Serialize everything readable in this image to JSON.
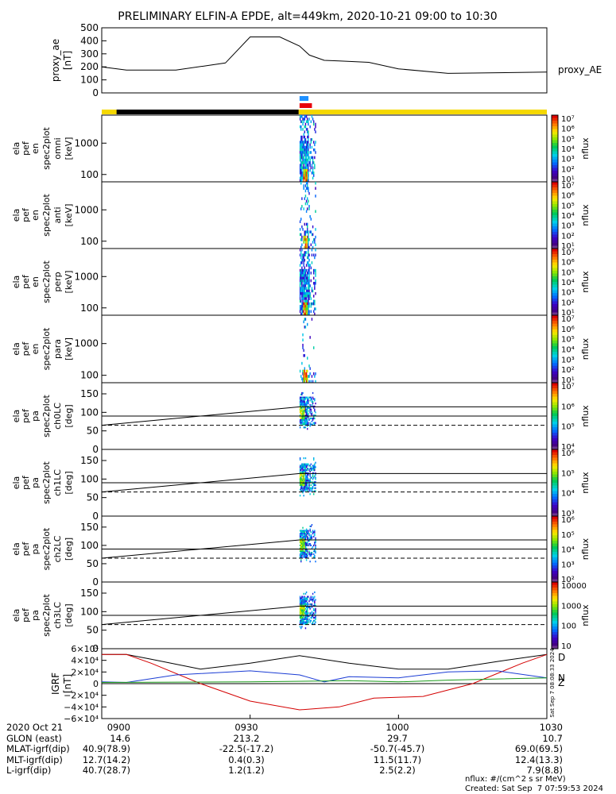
{
  "title": "PRELIMINARY ELFIN-A EPDE, alt=449km, 2020-10-21 09:00 to 10:30",
  "panels": {
    "ae": {
      "ylabel": [
        "proxy_ae",
        "[nT]"
      ],
      "yticks": [
        "500",
        "400",
        "300",
        "200",
        "100",
        "0"
      ],
      "legend": "proxy_AE"
    },
    "spec": [
      {
        "ylabel": [
          "ela",
          "pef",
          "en",
          "spec2plot",
          "omni",
          "[keV]"
        ],
        "yticks": [
          "1000",
          "100"
        ]
      },
      {
        "ylabel": [
          "ela",
          "pef",
          "en",
          "spec2plot",
          "anti",
          "[keV]"
        ],
        "yticks": [
          "1000",
          "100"
        ]
      },
      {
        "ylabel": [
          "ela",
          "pef",
          "en",
          "spec2plot",
          "perp",
          "[keV]"
        ],
        "yticks": [
          "1000",
          "100"
        ]
      },
      {
        "ylabel": [
          "ela",
          "pef",
          "en",
          "spec2plot",
          "para",
          "[keV]"
        ],
        "yticks": [
          "1000",
          "100"
        ]
      }
    ],
    "pa": [
      {
        "ylabel": [
          "ela",
          "pef",
          "pa",
          "spec2plot",
          "ch0LC",
          "[deg]"
        ],
        "yticks": [
          "150",
          "100",
          "50",
          "0"
        ]
      },
      {
        "ylabel": [
          "ela",
          "pef",
          "pa",
          "spec2plot",
          "ch1LC",
          "[deg]"
        ],
        "yticks": [
          "150",
          "100",
          "50",
          "0"
        ]
      },
      {
        "ylabel": [
          "ela",
          "pef",
          "pa",
          "spec2plot",
          "ch2LC",
          "[deg]"
        ],
        "yticks": [
          "150",
          "100",
          "50",
          "0"
        ]
      },
      {
        "ylabel": [
          "ela",
          "pef",
          "pa",
          "spec2plot",
          "ch3LC",
          "[deg]"
        ],
        "yticks": [
          "150",
          "100",
          "50",
          "0"
        ]
      }
    ],
    "igrf": {
      "ylabel": [
        "IGRF",
        "[nT]"
      ],
      "yticks": [
        "6×10⁴",
        "4×10⁴",
        "2×10⁴",
        "0",
        "−2×10⁴",
        "−4×10⁴",
        "−6×10⁴"
      ],
      "legend": [
        "D",
        "N",
        "Z"
      ]
    }
  },
  "colorbars": [
    {
      "label": "nflux",
      "ticks": [
        "10⁷",
        "10⁶",
        "10⁵",
        "10⁴",
        "10³",
        "10²",
        "10¹"
      ]
    },
    {
      "label": "nflux",
      "ticks": [
        "10⁷",
        "10⁶",
        "10⁵",
        "10⁴",
        "10³",
        "10²",
        "10¹"
      ]
    },
    {
      "label": "nflux",
      "ticks": [
        "10⁷",
        "10⁶",
        "10⁵",
        "10⁴",
        "10³",
        "10²",
        "10¹"
      ]
    },
    {
      "label": "nflux",
      "ticks": [
        "10⁷",
        "10⁶",
        "10⁵",
        "10⁴",
        "10³",
        "10²",
        "10¹"
      ]
    },
    {
      "label": "nflux",
      "ticks": [
        "10⁷",
        "10⁶",
        "10⁵",
        "10⁴"
      ]
    },
    {
      "label": "nflux",
      "ticks": [
        "10⁶",
        "10⁵",
        "10⁴",
        "10³"
      ]
    },
    {
      "label": "nflux",
      "ticks": [
        "10⁶",
        "10⁵",
        "10⁴",
        "10³",
        "10²"
      ]
    },
    {
      "label": "nflux",
      "ticks": [
        "10000",
        "1000",
        "100",
        "10"
      ]
    }
  ],
  "colors": {
    "sun": "#f5d800",
    "night": "#000000",
    "blue_bar": "#1e90ff",
    "red_bar": "#e8000b",
    "D": "#d40000",
    "N": "#1a3cd4",
    "Z": "#1a9a1a",
    "total": "#000000"
  },
  "chart_data": {
    "type": "multi-panel spectrogram",
    "time_ticks": [
      "0900",
      "0930",
      "1000",
      "1030"
    ],
    "proxy_ae": {
      "x_min": [
        0,
        5,
        15,
        25,
        30,
        36,
        40,
        42,
        45,
        48,
        54,
        60,
        70,
        80,
        90
      ],
      "values": [
        200,
        175,
        175,
        230,
        430,
        430,
        360,
        290,
        250,
        245,
        235,
        185,
        150,
        155,
        160
      ],
      "ylim": [
        0,
        500
      ]
    },
    "sector_bars": {
      "blue": [
        40.0,
        41.8
      ],
      "red": [
        40.0,
        42.5
      ],
      "night": [
        3.0,
        39.8
      ]
    },
    "igrf": {
      "ylim": [
        -60000,
        60000
      ],
      "D": {
        "x_min": [
          0,
          5,
          10,
          20,
          30,
          40,
          48,
          55,
          65,
          75,
          85,
          90
        ],
        "values": [
          50000,
          50000,
          35000,
          0,
          -30000,
          -45000,
          -40000,
          -25000,
          -22000,
          0,
          35000,
          50000
        ]
      },
      "N": {
        "x_min": [
          0,
          5,
          15,
          30,
          40,
          45,
          50,
          60,
          70,
          80,
          90
        ],
        "values": [
          3000,
          2000,
          15000,
          22000,
          15000,
          3000,
          12000,
          10000,
          20000,
          22000,
          10000
        ]
      },
      "Z": {
        "x_min": [
          0,
          30,
          50,
          60,
          70,
          90
        ],
        "values": [
          2000,
          3000,
          5000,
          3000,
          6000,
          10000
        ]
      },
      "total": {
        "x_min": [
          0,
          5,
          10,
          20,
          30,
          40,
          50,
          60,
          70,
          80,
          90
        ],
        "values": [
          50000,
          50000,
          42000,
          25000,
          35000,
          48000,
          35000,
          25000,
          25000,
          38000,
          50000
        ]
      }
    },
    "ephemeris": {
      "labels": [
        "2020 Oct 21",
        "GLON (east)",
        "MLAT-igrf(dip)",
        "MLT-igrf(dip)",
        "L-igrf(dip)"
      ],
      "columns": [
        [
          "0900",
          "14.6",
          "40.9(78.9)",
          "12.7(14.2)",
          "40.7(28.7)"
        ],
        [
          "0930",
          "213.2",
          "-22.5(-17.2)",
          "0.4(0.3)",
          "1.2(1.2)"
        ],
        [
          "1000",
          "29.7",
          "-50.7(-45.7)",
          "11.5(11.7)",
          "2.5(2.2)"
        ],
        [
          "1030",
          "10.7",
          "69.0(69.5)",
          "12.4(13.3)",
          "7.9(8.8)"
        ]
      ]
    }
  },
  "footer": {
    "units": "nflux: #/(cm^2 s sr MeV)",
    "created": "Created: Sat Sep  7 07:59:53 2024",
    "side_stamp": "Sat Sep  7 08:08:33 2024"
  }
}
